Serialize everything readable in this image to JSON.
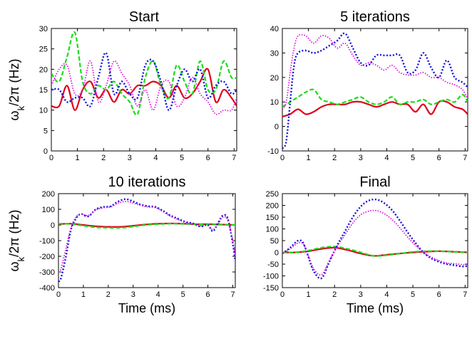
{
  "chart_data": [
    {
      "type": "line",
      "title": "Start",
      "xlabel": "",
      "ylabel": "ω_k/2π (Hz)",
      "xlim": [
        0,
        7.1
      ],
      "ylim": [
        0,
        30
      ],
      "xticks": [
        "0",
        "1",
        "2",
        "3",
        "4",
        "5",
        "6",
        "7"
      ],
      "yticks": [
        "0",
        "5",
        "10",
        "15",
        "20",
        "25",
        "30"
      ],
      "series": [
        {
          "color": "#e0001b",
          "x": [
            0,
            0.3,
            0.6,
            0.9,
            1.2,
            1.5,
            1.8,
            2.1,
            2.4,
            2.7,
            3.0,
            3.3,
            3.6,
            3.9,
            4.2,
            4.5,
            4.8,
            5.1,
            5.4,
            5.7,
            6.0,
            6.3,
            6.6,
            6.9,
            7.1
          ],
          "values": [
            11,
            11,
            16,
            10,
            15,
            17,
            13,
            15,
            12,
            15,
            14,
            16,
            16,
            17,
            16,
            13,
            16,
            13,
            14,
            17,
            20,
            12,
            15,
            13,
            11
          ]
        },
        {
          "color": "#1adc1a",
          "x": [
            0,
            0.3,
            0.6,
            0.9,
            1.2,
            1.5,
            1.8,
            2.1,
            2.4,
            2.7,
            3.0,
            3.3,
            3.6,
            3.9,
            4.2,
            4.5,
            4.8,
            5.1,
            5.4,
            5.7,
            6.0,
            6.3,
            6.6,
            6.9,
            7.1
          ],
          "values": [
            19,
            17,
            23,
            29,
            17,
            14,
            16,
            15,
            17,
            14,
            12,
            9,
            18,
            22,
            16,
            13,
            21,
            17,
            14,
            22,
            15,
            15,
            22,
            18,
            18
          ]
        },
        {
          "color": "#1010d8",
          "x": [
            0,
            0.3,
            0.6,
            0.9,
            1.2,
            1.5,
            1.8,
            2.1,
            2.4,
            2.7,
            3.0,
            3.3,
            3.6,
            3.9,
            4.2,
            4.5,
            4.8,
            5.1,
            5.4,
            5.7,
            6.0,
            6.3,
            6.6,
            6.9,
            7.1
          ],
          "values": [
            15,
            15,
            12,
            13,
            13,
            11,
            18,
            24,
            14,
            17,
            14,
            13,
            21,
            22,
            17,
            10,
            16,
            20,
            17,
            20,
            13,
            16,
            17,
            14,
            15
          ]
        },
        {
          "color": "#e010e0",
          "x": [
            0,
            0.3,
            0.6,
            0.9,
            1.2,
            1.5,
            1.8,
            2.1,
            2.4,
            2.7,
            3.0,
            3.3,
            3.6,
            3.9,
            4.2,
            4.5,
            4.8,
            5.1,
            5.4,
            5.7,
            6.0,
            6.3,
            6.6,
            6.9,
            7.1
          ],
          "values": [
            16,
            20,
            21,
            14,
            15,
            22,
            12,
            16,
            22,
            19,
            16,
            11,
            15,
            10,
            16,
            17,
            11,
            13,
            18,
            14,
            12,
            9,
            10,
            10,
            13
          ]
        }
      ]
    },
    {
      "type": "line",
      "title": "5 iterations",
      "xlabel": "",
      "ylabel": "",
      "xlim": [
        0,
        7.1
      ],
      "ylim": [
        -10,
        40
      ],
      "xticks": [
        "0",
        "1",
        "2",
        "3",
        "4",
        "5",
        "6",
        "7"
      ],
      "yticks": [
        "-10",
        "0",
        "10",
        "20",
        "30",
        "40"
      ],
      "series": [
        {
          "color": "#e0001b",
          "x": [
            0,
            0.3,
            0.6,
            0.9,
            1.2,
            1.5,
            1.8,
            2.1,
            2.4,
            2.7,
            3.0,
            3.3,
            3.6,
            3.9,
            4.2,
            4.5,
            4.8,
            5.1,
            5.4,
            5.7,
            6.0,
            6.3,
            6.6,
            6.9,
            7.1
          ],
          "values": [
            4,
            5,
            7,
            5,
            6,
            8,
            9,
            9,
            9,
            10,
            10,
            9,
            8,
            9,
            10,
            9,
            9,
            6,
            9,
            5,
            10,
            10,
            8,
            7,
            5
          ]
        },
        {
          "color": "#1adc1a",
          "x": [
            0,
            0.3,
            0.6,
            0.9,
            1.2,
            1.5,
            1.8,
            2.1,
            2.4,
            2.7,
            3.0,
            3.3,
            3.6,
            3.9,
            4.2,
            4.5,
            4.8,
            5.1,
            5.4,
            5.7,
            6.0,
            6.3,
            6.6,
            6.9,
            7.1
          ],
          "values": [
            8,
            10,
            12,
            14,
            15,
            11,
            10,
            9,
            10,
            11,
            12,
            10,
            9,
            10,
            12,
            9,
            10,
            10,
            11,
            9,
            10,
            11,
            10,
            13,
            10
          ]
        },
        {
          "color": "#1010d8",
          "x": [
            0,
            0.15,
            0.3,
            0.45,
            0.6,
            0.9,
            1.2,
            1.5,
            1.8,
            2.1,
            2.4,
            2.7,
            3.0,
            3.3,
            3.6,
            3.9,
            4.2,
            4.5,
            4.8,
            5.1,
            5.4,
            5.7,
            6.0,
            6.3,
            6.6,
            6.9,
            7.1
          ],
          "values": [
            -9,
            -6,
            10,
            25,
            30,
            31,
            30,
            31,
            33,
            35,
            38,
            32,
            26,
            25,
            29,
            29,
            29,
            29,
            22,
            23,
            30,
            24,
            20,
            27,
            20,
            18,
            16
          ]
        },
        {
          "color": "#e010e0",
          "x": [
            0,
            0.15,
            0.3,
            0.45,
            0.6,
            0.9,
            1.2,
            1.5,
            1.8,
            2.1,
            2.4,
            2.7,
            3.0,
            3.3,
            3.6,
            3.9,
            4.2,
            4.5,
            4.8,
            5.1,
            5.4,
            5.7,
            6.0,
            6.3,
            6.6,
            6.9,
            7.1
          ],
          "values": [
            7,
            10,
            22,
            32,
            37,
            37,
            34,
            37,
            36,
            32,
            34,
            29,
            25,
            26,
            25,
            23,
            25,
            22,
            21,
            21,
            22,
            20,
            20,
            18,
            17,
            15,
            11
          ]
        }
      ]
    },
    {
      "type": "line",
      "title": "10 iterations",
      "xlabel": "Time (ms)",
      "ylabel": "ω_k/2π (Hz)",
      "xlim": [
        0,
        7.1
      ],
      "ylim": [
        -400,
        200
      ],
      "xticks": [
        "0",
        "1",
        "2",
        "3",
        "4",
        "5",
        "6",
        "7"
      ],
      "yticks": [
        "-400",
        "-300",
        "-200",
        "-100",
        "0",
        "100",
        "200"
      ],
      "series": [
        {
          "color": "#e0001b",
          "x": [
            0,
            0.5,
            1.0,
            1.5,
            2.0,
            2.5,
            3.0,
            3.5,
            4.0,
            4.5,
            5.0,
            5.5,
            6.0,
            6.5,
            7.1
          ],
          "values": [
            5,
            8,
            0,
            -8,
            -12,
            -12,
            -5,
            3,
            8,
            10,
            8,
            5,
            5,
            3,
            0
          ]
        },
        {
          "color": "#1adc1a",
          "x": [
            0,
            0.5,
            1.0,
            1.5,
            2.0,
            2.5,
            3.0,
            3.5,
            4.0,
            4.5,
            5.0,
            5.5,
            6.0,
            6.5,
            7.1
          ],
          "values": [
            8,
            6,
            -5,
            -15,
            -18,
            -18,
            -10,
            0,
            5,
            8,
            7,
            5,
            3,
            2,
            0
          ]
        },
        {
          "color": "#1010d8",
          "x": [
            0,
            0.1,
            0.3,
            0.5,
            0.7,
            0.9,
            1.2,
            1.5,
            1.8,
            2.1,
            2.4,
            2.7,
            3.0,
            3.3,
            3.6,
            3.9,
            4.2,
            4.5,
            4.8,
            5.1,
            5.4,
            5.7,
            6.0,
            6.2,
            6.4,
            6.6,
            6.8,
            7.0,
            7.1
          ],
          "values": [
            -360,
            -340,
            -200,
            -30,
            40,
            70,
            55,
            100,
            115,
            120,
            150,
            165,
            150,
            130,
            120,
            115,
            90,
            60,
            40,
            20,
            10,
            -10,
            0,
            -40,
            10,
            60,
            40,
            -120,
            -230
          ]
        },
        {
          "color": "#e010e0",
          "x": [
            0,
            0.1,
            0.3,
            0.5,
            0.7,
            0.9,
            1.2,
            1.5,
            1.8,
            2.1,
            2.4,
            2.7,
            3.0,
            3.3,
            3.6,
            3.9,
            4.2,
            4.5,
            4.8,
            5.1,
            5.4,
            5.7,
            6.0,
            6.2,
            6.4,
            6.6,
            6.8,
            7.0,
            7.1
          ],
          "values": [
            -300,
            -280,
            -150,
            -20,
            50,
            70,
            60,
            95,
            110,
            115,
            140,
            150,
            140,
            125,
            115,
            110,
            85,
            55,
            35,
            15,
            5,
            -5,
            -5,
            -30,
            5,
            50,
            30,
            -100,
            -200
          ]
        }
      ]
    },
    {
      "type": "line",
      "title": "Final",
      "xlabel": "Time (ms)",
      "ylabel": "",
      "xlim": [
        0,
        7.1
      ],
      "ylim": [
        -150,
        250
      ],
      "xticks": [
        "0",
        "1",
        "2",
        "3",
        "4",
        "5",
        "6",
        "7"
      ],
      "yticks": [
        "-150",
        "-100",
        "-50",
        "0",
        "50",
        "100",
        "150",
        "200",
        "250"
      ],
      "series": [
        {
          "color": "#e0001b",
          "x": [
            0,
            0.5,
            1.0,
            1.5,
            2.0,
            2.5,
            3.0,
            3.5,
            4.0,
            4.5,
            5.0,
            5.5,
            6.0,
            6.5,
            7.1
          ],
          "values": [
            0,
            0,
            5,
            15,
            20,
            10,
            -5,
            -15,
            -10,
            -5,
            0,
            3,
            5,
            3,
            0
          ]
        },
        {
          "color": "#1adc1a",
          "x": [
            0,
            0.5,
            1.0,
            1.5,
            2.0,
            2.5,
            3.0,
            3.5,
            4.0,
            4.5,
            5.0,
            5.5,
            6.0,
            6.5,
            7.1
          ],
          "values": [
            0,
            0,
            8,
            20,
            25,
            15,
            0,
            -15,
            -12,
            -5,
            2,
            5,
            5,
            3,
            0
          ]
        },
        {
          "color": "#1010d8",
          "x": [
            0,
            0.3,
            0.6,
            0.8,
            1.0,
            1.2,
            1.5,
            1.8,
            2.1,
            2.4,
            2.7,
            3.0,
            3.3,
            3.6,
            3.9,
            4.2,
            4.5,
            4.8,
            5.1,
            5.4,
            5.7,
            6.0,
            6.3,
            6.6,
            6.9,
            7.1
          ],
          "values": [
            -5,
            20,
            50,
            40,
            -20,
            -80,
            -110,
            -40,
            30,
            90,
            150,
            195,
            220,
            225,
            210,
            180,
            135,
            85,
            40,
            0,
            -25,
            -40,
            -50,
            -55,
            -60,
            -58
          ]
        },
        {
          "color": "#e010e0",
          "x": [
            0,
            0.3,
            0.6,
            0.8,
            1.0,
            1.2,
            1.5,
            1.8,
            2.1,
            2.4,
            2.7,
            3.0,
            3.3,
            3.6,
            3.9,
            4.2,
            4.5,
            4.8,
            5.1,
            5.4,
            5.7,
            6.0,
            6.3,
            6.6,
            6.9,
            7.1
          ],
          "values": [
            -5,
            15,
            40,
            35,
            -15,
            -70,
            -95,
            -35,
            25,
            75,
            125,
            160,
            175,
            178,
            165,
            140,
            105,
            65,
            30,
            0,
            -20,
            -35,
            -45,
            -48,
            -52,
            -52
          ]
        }
      ]
    }
  ]
}
